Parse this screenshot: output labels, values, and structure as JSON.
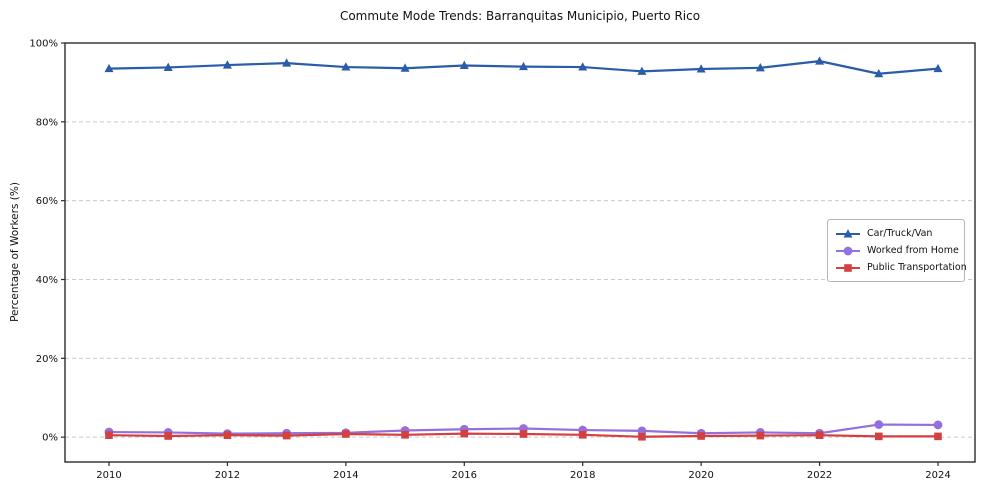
{
  "figure": {
    "title": "Commute Mode Trends: Barranquitas Municipio, Puerto Rico",
    "ylabel": "Percentage of Workers (%)"
  },
  "chart_data": {
    "type": "line",
    "title": "Commute Mode Trends: Barranquitas Municipio, Puerto Rico",
    "xlabel": "",
    "ylabel": "Percentage of Workers (%)",
    "x": [
      2010,
      2011,
      2012,
      2013,
      2014,
      2015,
      2016,
      2017,
      2018,
      2019,
      2020,
      2021,
      2022,
      2023,
      2024
    ],
    "xtick_labels": [
      "2010",
      "2012",
      "2014",
      "2016",
      "2018",
      "2020",
      "2022",
      "2024"
    ],
    "yticks": [
      0,
      20,
      40,
      60,
      80,
      100
    ],
    "ytick_suffix": "%",
    "ylim": [
      0,
      100
    ],
    "grid": "horizontal-dashed",
    "legend_position": "center-right",
    "series": [
      {
        "name": "Car/Truck/Van",
        "color": "#2a5caa",
        "marker": "triangle",
        "values": [
          93.5,
          93.8,
          94.4,
          94.9,
          93.9,
          93.6,
          94.3,
          94.0,
          93.9,
          92.8,
          93.4,
          93.7,
          95.4,
          92.2,
          93.5
        ]
      },
      {
        "name": "Worked from Home",
        "color": "#9370db",
        "marker": "circle",
        "values": [
          1.3,
          1.2,
          0.9,
          1.0,
          1.1,
          1.7,
          2.0,
          2.2,
          1.8,
          1.6,
          1.0,
          1.2,
          1.0,
          3.2,
          3.1
        ]
      },
      {
        "name": "Public Transportation",
        "color": "#d43f3f",
        "marker": "square",
        "values": [
          0.5,
          0.3,
          0.5,
          0.4,
          0.8,
          0.6,
          0.9,
          0.8,
          0.6,
          0.1,
          0.3,
          0.4,
          0.5,
          0.2,
          0.2
        ]
      }
    ]
  }
}
